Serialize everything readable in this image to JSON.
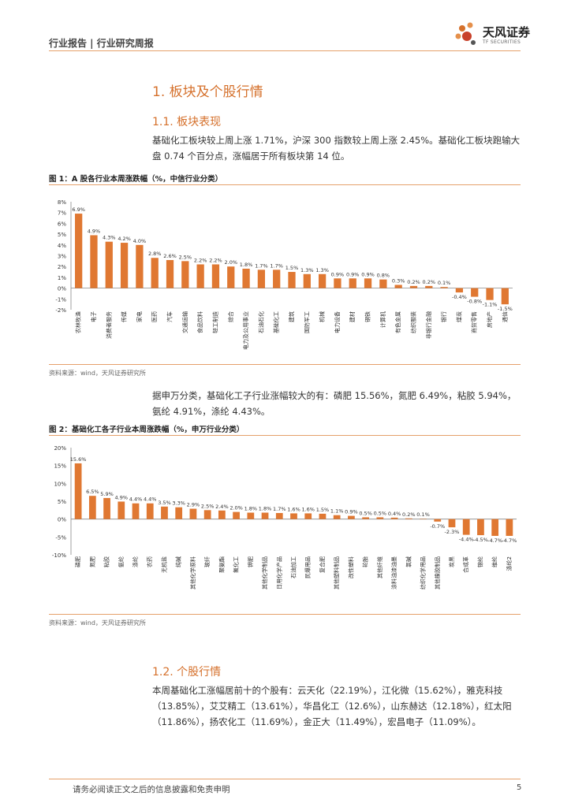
{
  "header": {
    "breadcrumb": "行业报告 | 行业研究周报",
    "logo_name": "天风证券",
    "logo_sub": "TF SECURITIES"
  },
  "section1": {
    "title": "1. 板块及个股行情"
  },
  "section1_1": {
    "title": "1.1. 板块表现",
    "para1": "基础化工板块较上周上涨 1.71%，沪深 300 指数较上周上涨 2.45%。基础化工板块跑输大盘 0.74 个百分点，涨幅居于所有板块第 14 位。",
    "para2": "据申万分类，基础化工子行业涨幅较大的有：磷肥 15.56%，氮肥 6.49%，粘胶 5.94%，氨纶 4.91%，涤纶 4.43%。"
  },
  "figure1": {
    "title": "图 1：A 股各行业本周涨跌幅（%，中信行业分类）",
    "source": "资料来源：wind，天风证券研究所"
  },
  "figure2": {
    "title": "图 2：基础化工各子行业本周涨跌幅（%，申万行业分类）",
    "source": "资料来源：wind，天风证券研究所"
  },
  "section1_2": {
    "title": "1.2. 个股行情",
    "para": "本周基础化工涨幅居前十的个股有：云天化（22.19%），江化微（15.62%），雅克科技（13.85%），艾艾精工（13.61%），华昌化工（12.6%），山东赫达（12.18%），红太阳（11.86%），扬农化工（11.69%），金正大（11.49%），宏昌电子（11.09%）。"
  },
  "footer": {
    "disclaimer": "请务必阅读正文之后的信息披露和免责申明",
    "page_number": "5"
  },
  "colors": {
    "bar": "#e07832",
    "accent": "#d5702b"
  },
  "chart_data": [
    {
      "type": "bar",
      "title": "图 1：A 股各行业本周涨跌幅（%，中信行业分类）",
      "ylim": [
        -2,
        8
      ],
      "yticks": [
        "8%",
        "7%",
        "6%",
        "5%",
        "4%",
        "3%",
        "2%",
        "1%",
        "0%",
        "-1%",
        "-2%"
      ],
      "categories": [
        "农林牧渔",
        "电子",
        "消费者服务",
        "传媒",
        "家电",
        "医药",
        "汽车",
        "交通运输",
        "食品饮料",
        "轻工制造",
        "综合",
        "电力及公用事业",
        "石油石化",
        "基础化工",
        "建筑",
        "国防军工",
        "机械",
        "电力设备",
        "建材",
        "钢铁",
        "计算机",
        "有色金属",
        "纺织服装",
        "非银行金融",
        "银行",
        "煤炭",
        "商贸零售",
        "房地产",
        "通信"
      ],
      "values": [
        6.9,
        4.9,
        4.3,
        4.2,
        4.0,
        2.8,
        2.6,
        2.5,
        2.2,
        2.2,
        2.0,
        1.8,
        1.7,
        1.7,
        1.5,
        1.3,
        1.3,
        0.9,
        0.9,
        0.9,
        0.8,
        0.3,
        0.2,
        0.2,
        0.1,
        -0.4,
        -0.8,
        -1.1,
        -1.5
      ],
      "labels": [
        "6.9%",
        "4.9%",
        "4.3%",
        "4.2%",
        "4.0%",
        "2.8%",
        "2.6%",
        "2.5%",
        "2.2%",
        "2.2%",
        "2.0%",
        "1.8%",
        "1.7%",
        "1.7%",
        "1.5%",
        "1.3%",
        "1.3%",
        "0.9%",
        "0.9%",
        "0.9%",
        "0.8%",
        "0.3%",
        "0.2%",
        "0.2%",
        "0.1%",
        "-0.4%",
        "-0.8%",
        "-1.1%",
        "-1.5%"
      ]
    },
    {
      "type": "bar",
      "title": "图 2：基础化工各子行业本周涨跌幅（%，申万行业分类）",
      "ylim": [
        -10,
        20
      ],
      "yticks": [
        "20%",
        "15%",
        "10%",
        "5%",
        "0%",
        "-5%",
        "-10%"
      ],
      "categories": [
        "磷肥",
        "氮肥",
        "粘胶",
        "氨纶",
        "涤纶",
        "农药",
        "无机盐",
        "纯碱",
        "其他化学原料",
        "玻纤",
        "聚氨酯",
        "氟化工",
        "钾肥",
        "其他化学制品",
        "日用化学产品",
        "石油加工",
        "民爆用品",
        "复合肥",
        "其他塑料制品",
        "改性塑料",
        "轮胎",
        "其他纤维",
        "涂料油漆油墨",
        "氯碱",
        "纺织化学用品",
        "其他橡胶制品",
        "炭黑",
        "合成革",
        "锦纶",
        "维纶",
        "涤纶2"
      ],
      "values": [
        15.6,
        6.5,
        5.9,
        4.9,
        4.4,
        4.4,
        3.5,
        3.3,
        2.9,
        2.5,
        2.4,
        2.0,
        1.8,
        1.8,
        1.7,
        1.6,
        1.6,
        1.5,
        1.1,
        0.9,
        0.5,
        0.5,
        0.4,
        0.2,
        0.1,
        -0.7,
        -2.3,
        -4.4,
        -4.5,
        -4.7,
        -4.7
      ],
      "labels": [
        "15.6%",
        "6.5%",
        "5.9%",
        "4.9%",
        "4.4%",
        "4.4%",
        "3.5%",
        "3.3%",
        "2.9%",
        "2.5%",
        "2.4%",
        "2.0%",
        "1.8%",
        "1.8%",
        "1.7%",
        "1.6%",
        "1.6%",
        "1.5%",
        "1.1%",
        "0.9%",
        "0.5%",
        "0.5%",
        "0.4%",
        "0.2%",
        "0.1%",
        "-0.7%",
        "-2.3%",
        "-4.4%",
        "-4.5%",
        "-4.7%",
        "-4.7%"
      ]
    }
  ]
}
